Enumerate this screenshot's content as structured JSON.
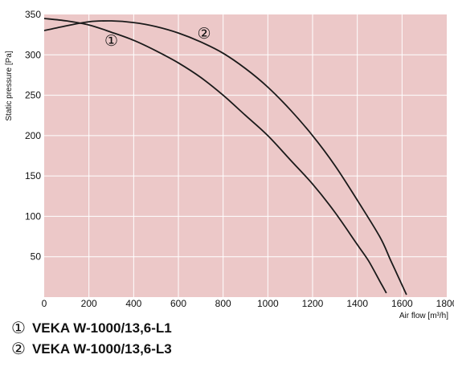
{
  "chart_data": {
    "type": "line",
    "title": "",
    "xlabel": "Air flow [m³/h]",
    "ylabel": "Static pressure [Pa]",
    "xlim": [
      0,
      1800
    ],
    "ylim": [
      0,
      350
    ],
    "x_ticks": [
      0,
      200,
      400,
      600,
      800,
      1000,
      1200,
      1400,
      1600,
      1800
    ],
    "y_ticks": [
      50,
      100,
      150,
      200,
      250,
      300,
      350
    ],
    "grid": true,
    "background_color": "#ecc8c8",
    "grid_color": "#ffffff",
    "line_color": "#1a1a1a",
    "series": [
      {
        "marker": "①",
        "name": "VEKA W-1000/13,6-L1",
        "x": [
          0,
          100,
          200,
          300,
          400,
          500,
          600,
          700,
          800,
          900,
          1000,
          1100,
          1200,
          1300,
          1400,
          1450,
          1500,
          1530
        ],
        "y": [
          345,
          342,
          337,
          328,
          318,
          305,
          290,
          272,
          250,
          225,
          200,
          170,
          140,
          105,
          65,
          45,
          20,
          5
        ]
      },
      {
        "marker": "②",
        "name": "VEKA W-1000/13,6-L3",
        "x": [
          0,
          100,
          200,
          300,
          400,
          500,
          600,
          700,
          800,
          900,
          1000,
          1100,
          1200,
          1300,
          1400,
          1500,
          1550,
          1600,
          1620
        ],
        "y": [
          330,
          336,
          341,
          342,
          340,
          335,
          327,
          316,
          302,
          283,
          260,
          232,
          200,
          163,
          120,
          75,
          45,
          15,
          3
        ]
      }
    ],
    "annotations": [
      {
        "text": "①",
        "x": 300,
        "y": 318
      },
      {
        "text": "②",
        "x": 715,
        "y": 327
      }
    ]
  }
}
